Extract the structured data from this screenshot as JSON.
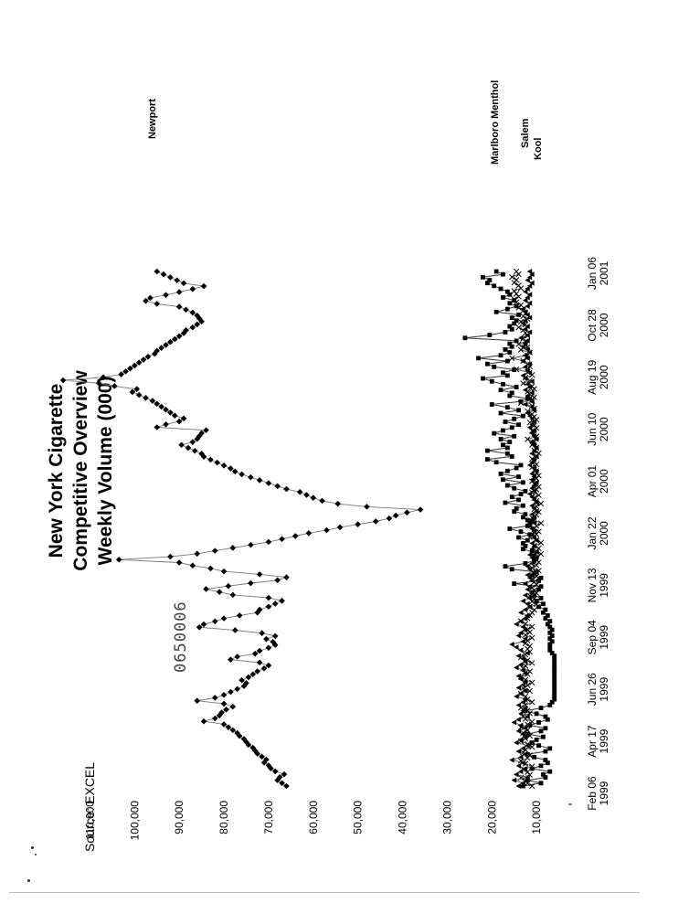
{
  "source_note": "Source: EXCEL",
  "document_id": "0650006",
  "chart_data": {
    "type": "line",
    "title_lines": [
      "New York Cigarette",
      "Competitive Overview",
      "Weekly Volume (000)"
    ],
    "x_tick_labels": [
      [
        "Feb 06",
        "1999"
      ],
      [
        "Apr 17",
        "1999"
      ],
      [
        "Jun 26",
        "1999"
      ],
      [
        "Sep 04",
        "1999"
      ],
      [
        "Nov 13",
        "1999"
      ],
      [
        "Jan 22",
        "2000"
      ],
      [
        "Apr 01",
        "2000"
      ],
      [
        "Jun 10",
        "2000"
      ],
      [
        "Aug 19",
        "2000"
      ],
      [
        "Oct 28",
        "2000"
      ],
      [
        "Jan 06",
        "2001"
      ]
    ],
    "y_tick_labels": [
      "10,000",
      "20,000",
      "30,000",
      "40,000",
      "50,000",
      "60,000",
      "70,000",
      "80,000",
      "90,000",
      "100,000",
      "110,000"
    ],
    "ylim": [
      0,
      115000
    ],
    "grid": false,
    "legend": "labels at right end of lines",
    "series": [
      {
        "name": "Newport",
        "marker": "diamond",
        "color": "#000000",
        "values": [
          66000,
          67000,
          68000,
          67500,
          66500,
          68500,
          69500,
          70000,
          71000,
          70500,
          71500,
          72500,
          73000,
          73500,
          74500,
          75000,
          75500,
          76500,
          77000,
          78000,
          79000,
          80000,
          84500,
          82000,
          81000,
          80500,
          79500,
          78000,
          80000,
          86000,
          82000,
          80000,
          78500,
          77000,
          75500,
          75000,
          76000,
          74500,
          73500,
          72500,
          71000,
          70000,
          72000,
          78500,
          77000,
          73000,
          72000,
          70000,
          68500,
          69000,
          70500,
          68500,
          71500,
          77500,
          85500,
          84500,
          82000,
          80000,
          76500,
          72500,
          72000,
          70000,
          68500,
          67000,
          70000,
          78000,
          81000,
          84000,
          79000,
          74000,
          68000,
          66000,
          72000,
          80000,
          83000,
          87000,
          90000,
          103500,
          92000,
          86000,
          82000,
          78000,
          74000,
          70000,
          67000,
          64000,
          61000,
          57000,
          54000,
          50000,
          46000,
          43000,
          41500,
          39000,
          36000,
          48000,
          54500,
          58000,
          60000,
          61500,
          63000,
          66000,
          68000,
          70000,
          72000,
          74000,
          76000,
          77500,
          78500,
          80000,
          81500,
          83000,
          84500,
          85000,
          86500,
          88000,
          89500,
          87000,
          86000,
          85500,
          85000,
          84000,
          95000,
          93000,
          90000,
          89000,
          91000,
          92000,
          93000,
          94000,
          95000,
          96000,
          97500,
          99000,
          100500,
          99500,
          104500,
          108000,
          116000,
          107000,
          103000,
          102000,
          101000,
          100000,
          99000,
          98000,
          97000,
          95500,
          95000,
          94000,
          93000,
          92000,
          91000,
          90000,
          89000,
          88500,
          87000,
          86000,
          85000,
          85500,
          86000,
          87000,
          88500,
          90000,
          95000,
          97500,
          96500,
          93000,
          90000,
          87000,
          84500,
          89000,
          90500,
          92000,
          93500,
          95000
        ]
      },
      {
        "name": "Marlboro Menthol",
        "marker": "square",
        "color": "#000000",
        "values": [
          13000,
          9000,
          12000,
          8000,
          8500,
          7000,
          11000,
          9000,
          7500,
          8000,
          10500,
          12000,
          8000,
          7000,
          9500,
          11000,
          10000,
          8500,
          12000,
          9000,
          8000,
          11500,
          9500,
          7500,
          8000,
          10000,
          12500,
          9000,
          7000,
          6500,
          6000,
          6000,
          6000,
          6000,
          6000,
          6000,
          6000,
          6000,
          6000,
          6000,
          6000,
          6000,
          6000,
          6000,
          6000,
          6000,
          6500,
          7000,
          7000,
          7000,
          6500,
          7000,
          6500,
          7000,
          6500,
          7000,
          7500,
          7000,
          8000,
          7500,
          8500,
          8000,
          9500,
          8500,
          10000,
          9000,
          10500,
          11000,
          9500,
          9000,
          15000,
          9500,
          9000,
          11000,
          10000,
          15500,
          17000,
          12500,
          10500,
          10000,
          10500,
          11000,
          13000,
          12500,
          13000,
          12000,
          14000,
          11500,
          13500,
          16000,
          12000,
          11500,
          12000,
          13000,
          12500,
          15000,
          14500,
          13000,
          17000,
          14000,
          15500,
          13500,
          12500,
          15000,
          16500,
          13000,
          17500,
          14000,
          18000,
          16500,
          14500,
          13500,
          19000,
          21000,
          15500,
          16500,
          21000,
          16500,
          17500,
          16000,
          18000,
          15000,
          19500,
          17500,
          15500,
          14000,
          17000,
          15000,
          13000,
          18000,
          14000,
          16500,
          20000,
          13500,
          12000,
          16000,
          15500,
          18000,
          14500,
          17500,
          20000,
          22000,
          16500,
          17500,
          15000,
          19500,
          21000,
          16500,
          23000,
          18000,
          16000,
          17000,
          15500,
          16000,
          14500,
          26000,
          20500,
          17000,
          15500,
          16000,
          15000,
          14500,
          15500,
          14000,
          19000,
          16500,
          14500,
          16000,
          15000,
          17500,
          16000,
          16500,
          18000,
          19500,
          21000,
          20500,
          22000,
          17500,
          19000
        ]
      },
      {
        "name": "Salem",
        "marker": "x",
        "color": "#000000",
        "values": [
          11000,
          12000,
          12500,
          13500,
          11500,
          12000,
          13000,
          11000,
          12500,
          13500,
          12000,
          11500,
          13000,
          12500,
          11000,
          12000,
          13500,
          12500,
          11500,
          13000,
          12000,
          13500,
          12000,
          11000,
          12500,
          13000,
          11500,
          12000,
          13500,
          12500,
          11000,
          12000,
          12500,
          13500,
          11500,
          13000,
          12000,
          11000,
          12500,
          13500,
          12000,
          11500,
          13000,
          12500,
          11000,
          12000,
          13500,
          12500,
          11500,
          12000,
          11500,
          12500,
          12000,
          11000,
          12500,
          11500,
          12000,
          11000,
          12500,
          13500,
          12000,
          11500,
          11000,
          10500,
          11500,
          10000,
          11000,
          10500,
          11500,
          10000,
          10500,
          11000,
          10000,
          10500,
          11000,
          10000,
          10500,
          9500,
          11000,
          10000,
          9500,
          10000,
          10500,
          9000,
          10000,
          9500,
          10500,
          9000,
          10000,
          11500,
          10000,
          9500,
          10500,
          10000,
          9000,
          10500,
          11000,
          10000,
          9500,
          10500,
          10000,
          9000,
          10000,
          10500,
          9500,
          11000,
          10000,
          9500,
          10500,
          11000,
          10000,
          9500,
          10000,
          10500,
          11000,
          10000,
          10500,
          11000,
          10000,
          9500,
          10500,
          10000,
          11000,
          10500,
          12000,
          10000,
          10500,
          11000,
          10000,
          10500,
          11500,
          10000,
          10500,
          11000,
          12000,
          10500,
          11000,
          13500,
          11000,
          10500,
          11500,
          12000,
          10500,
          11000,
          13000,
          11500,
          12500,
          11000,
          12000,
          14500,
          11500,
          12000,
          13000,
          15500,
          12000,
          11500,
          13500,
          12000,
          14000,
          12500,
          13000,
          12000,
          12500,
          13000,
          14000,
          12500,
          13500,
          12000,
          13000,
          12500,
          13000,
          14000,
          13500,
          14500,
          15000,
          14000,
          14500,
          15000,
          13500,
          14000,
          15000,
          14500,
          15500,
          14000,
          14500
        ]
      },
      {
        "name": "Kool",
        "marker": "triangle",
        "color": "#000000",
        "values": [
          14000,
          13000,
          15000,
          12000,
          14500,
          13500,
          12500,
          14000,
          13000,
          15500,
          13500,
          12500,
          14000,
          13000,
          12000,
          14500,
          13500,
          12500,
          13000,
          14000,
          12500,
          13500,
          15000,
          14000,
          12000,
          13500,
          13000,
          12500,
          14000,
          13000,
          12500,
          14500,
          13500,
          12500,
          14000,
          13000,
          12500,
          13500,
          14000,
          12500,
          13000,
          14500,
          13500,
          12500,
          13000,
          14000,
          12000,
          13500,
          14500,
          15500,
          13000,
          12500,
          14000,
          13500,
          12500,
          13000,
          14500,
          13500,
          12500,
          12000,
          13500,
          12500,
          11500,
          12000,
          13000,
          11500,
          12500,
          11000,
          12000,
          11500,
          12500,
          11000,
          11500,
          12000,
          10500,
          11500,
          12000,
          11000,
          10500,
          11000,
          11500,
          10000,
          11000,
          10500,
          11000,
          10000,
          10500,
          11000,
          10500,
          11000,
          11500,
          10500,
          11000,
          10500,
          11000,
          10000,
          10500,
          11000,
          10000,
          10500,
          11000,
          11500,
          10500,
          11000,
          10500,
          10000,
          11000,
          10500,
          11000,
          10000,
          10500,
          11500,
          11000,
          10500,
          10000,
          11000,
          10500,
          10000,
          10500,
          11000,
          10000,
          10500,
          11000,
          10500,
          11500,
          11000,
          10500,
          11000,
          11500,
          12000,
          10500,
          11000,
          12500,
          11000,
          11500,
          12000,
          11000,
          12500,
          11500,
          12000,
          11000,
          12500,
          13000,
          11500,
          12000,
          12500,
          11500,
          13000,
          12000,
          12500,
          11500,
          12000,
          13000,
          12500,
          12000,
          13500,
          12000,
          11500,
          12500,
          12000,
          13000,
          12500,
          11500,
          12000,
          12500,
          13000,
          12000,
          11500,
          12500,
          12000,
          11500,
          12500,
          12000,
          11500,
          11000,
          12000,
          11500,
          11000,
          11500
        ]
      }
    ]
  }
}
